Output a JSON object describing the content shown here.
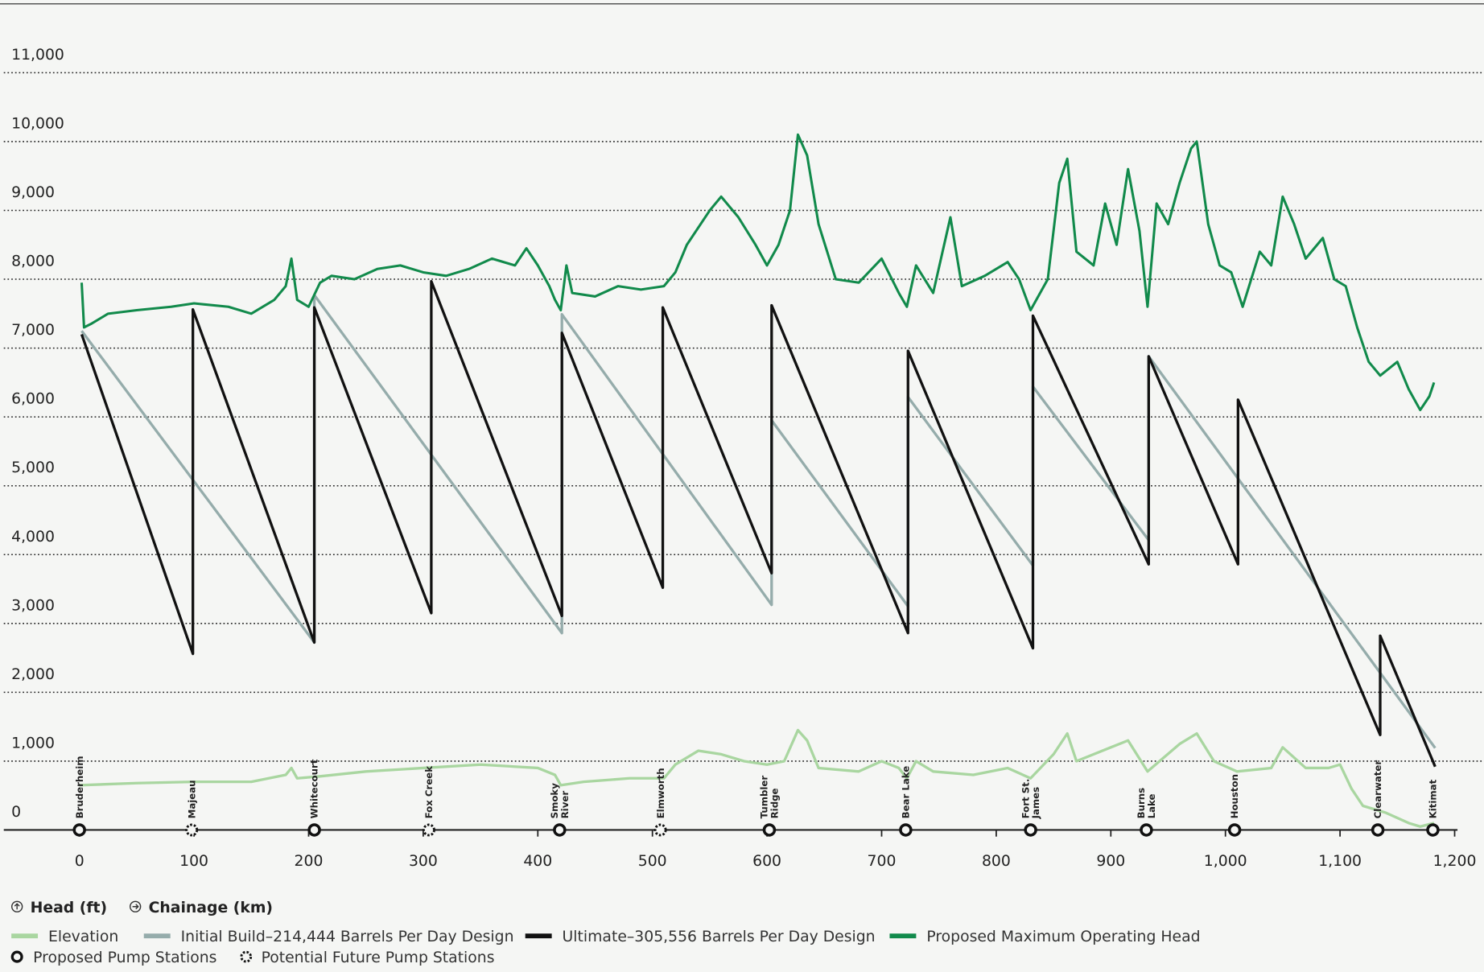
{
  "chart_data": {
    "type": "line",
    "xlabel": "Chainage (km)",
    "ylabel": "Head (ft)",
    "xlim": [
      -66,
      1202.5
    ],
    "ylim": [
      0,
      12000
    ],
    "xticks": [
      0,
      100,
      200,
      300,
      400,
      500,
      600,
      700,
      800,
      900,
      {
        "value": 1000,
        "label": "1,000"
      },
      {
        "value": 1100,
        "label": "1,100"
      },
      {
        "value": 1200,
        "label": "1,200"
      }
    ],
    "yticks": [
      0,
      {
        "value": 1000,
        "label": "1,000"
      },
      {
        "value": 2000,
        "label": "2,000"
      },
      {
        "value": 3000,
        "label": "3,000"
      },
      {
        "value": 4000,
        "label": "4,000"
      },
      {
        "value": 5000,
        "label": "5,000"
      },
      {
        "value": 6000,
        "label": "6,000"
      },
      {
        "value": 7000,
        "label": "7,000"
      },
      {
        "value": 8000,
        "label": "8,000"
      },
      {
        "value": 9000,
        "label": "9,000"
      },
      {
        "value": 10000,
        "label": "10,000"
      },
      {
        "value": 11000,
        "label": "11,000"
      }
    ],
    "grid": true,
    "series": [
      {
        "name": "Elevation",
        "color": "#a9d6a0",
        "x": [
          0,
          50,
          100,
          150,
          180,
          185,
          190,
          210,
          250,
          300,
          350,
          400,
          415,
          420,
          440,
          480,
          510,
          520,
          540,
          560,
          580,
          600,
          615,
          627,
          635,
          645,
          680,
          700,
          715,
          722,
          730,
          745,
          780,
          810,
          830,
          850,
          862,
          870,
          900,
          915,
          932,
          960,
          975,
          990,
          1010,
          1040,
          1050,
          1070,
          1090,
          1100,
          1110,
          1120,
          1140,
          1160,
          1170,
          1182
        ],
        "values": [
          650,
          680,
          700,
          700,
          800,
          900,
          750,
          780,
          850,
          900,
          950,
          900,
          800,
          650,
          700,
          750,
          750,
          950,
          1150,
          1100,
          1000,
          950,
          1000,
          1450,
          1300,
          900,
          850,
          1000,
          900,
          750,
          1000,
          850,
          800,
          900,
          750,
          1100,
          1400,
          1000,
          1200,
          1300,
          850,
          1250,
          1400,
          1000,
          850,
          900,
          1200,
          900,
          900,
          950,
          600,
          350,
          250,
          100,
          50,
          100
        ]
      },
      {
        "name": "Initial Build–214,444 Barrels Per Day Design",
        "color": "#95acab",
        "x": [
          2,
          205,
          205,
          421,
          421,
          604,
          604,
          723,
          723,
          832,
          832,
          933,
          933,
          1183
        ],
        "values": [
          7250,
          2725,
          7770,
          2860,
          7490,
          3270,
          5950,
          3250,
          6290,
          3840,
          6440,
          4210,
          6880,
          1190
        ]
      },
      {
        "name": "Ultimate–305,556 Barrels Per Day Design",
        "color": "#111111",
        "x": [
          2,
          99,
          99,
          205,
          205,
          307,
          307,
          421,
          421,
          509,
          509,
          604,
          604,
          723,
          723,
          832,
          832,
          933,
          933,
          1011,
          1011,
          1135,
          1135,
          1183
        ],
        "values": [
          7200,
          2560,
          7560,
          2725,
          7590,
          3150,
          7970,
          3110,
          7220,
          3520,
          7590,
          3730,
          7620,
          2860,
          6960,
          2640,
          7470,
          3860,
          6880,
          3860,
          6250,
          1380,
          2820,
          920
        ]
      },
      {
        "name": "Proposed Maximum Operating Head",
        "color": "#118a4b",
        "x": [
          2,
          4,
          10,
          25,
          50,
          80,
          100,
          130,
          150,
          170,
          180,
          185,
          190,
          200,
          210,
          220,
          240,
          260,
          280,
          300,
          320,
          340,
          360,
          380,
          390,
          400,
          410,
          415,
          420,
          425,
          430,
          450,
          470,
          490,
          510,
          520,
          530,
          550,
          560,
          575,
          590,
          600,
          610,
          620,
          627,
          635,
          645,
          660,
          680,
          700,
          715,
          722,
          730,
          745,
          760,
          770,
          790,
          810,
          820,
          830,
          845,
          855,
          862,
          870,
          885,
          895,
          905,
          915,
          925,
          932,
          940,
          950,
          960,
          970,
          975,
          985,
          995,
          1005,
          1015,
          1030,
          1040,
          1050,
          1060,
          1070,
          1085,
          1095,
          1105,
          1115,
          1125,
          1135,
          1150,
          1160,
          1170,
          1178,
          1182
        ],
        "values": [
          7950,
          7300,
          7350,
          7500,
          7550,
          7600,
          7650,
          7600,
          7500,
          7700,
          7900,
          8300,
          7700,
          7600,
          7950,
          8050,
          8000,
          8150,
          8200,
          8100,
          8050,
          8150,
          8300,
          8200,
          8450,
          8200,
          7900,
          7700,
          7550,
          8200,
          7800,
          7750,
          7900,
          7850,
          7900,
          8100,
          8500,
          9000,
          9200,
          8900,
          8500,
          8200,
          8500,
          9000,
          10100,
          9800,
          8800,
          8000,
          7950,
          8300,
          7800,
          7600,
          8200,
          7800,
          8900,
          7900,
          8050,
          8250,
          8000,
          7550,
          8000,
          9400,
          9750,
          8400,
          8200,
          9100,
          8500,
          9600,
          8700,
          7600,
          9100,
          8800,
          9400,
          9900,
          10000,
          8800,
          8200,
          8100,
          7600,
          8400,
          8200,
          9200,
          8800,
          8300,
          8600,
          8000,
          7900,
          7300,
          6800,
          6600,
          6800,
          6400,
          6100,
          6300,
          6500
        ]
      }
    ],
    "stations": [
      {
        "name": [
          "Bruderheim"
        ],
        "x": 0,
        "future": false
      },
      {
        "name": [
          "Majeau"
        ],
        "x": 98,
        "future": true
      },
      {
        "name": [
          "Whitecourt"
        ],
        "x": 205,
        "future": false
      },
      {
        "name": [
          "Fox Creek"
        ],
        "x": 305,
        "future": true
      },
      {
        "name": [
          "Smoky",
          "River"
        ],
        "x": 419,
        "future": false
      },
      {
        "name": [
          "Elmworth"
        ],
        "x": 507,
        "future": true
      },
      {
        "name": [
          "Tumbler",
          "Ridge"
        ],
        "x": 602,
        "future": false
      },
      {
        "name": [
          "Bear Lake"
        ],
        "x": 721,
        "future": false
      },
      {
        "name": [
          "Fort St.",
          "James"
        ],
        "x": 830,
        "future": false
      },
      {
        "name": [
          "Burns",
          "Lake"
        ],
        "x": 931,
        "future": false
      },
      {
        "name": [
          "Houston"
        ],
        "x": 1008,
        "future": false
      },
      {
        "name": [
          "Clearwater"
        ],
        "x": 1133,
        "future": false
      },
      {
        "name": [
          "Kitimat"
        ],
        "x": 1181,
        "future": false
      }
    ],
    "station_legend": {
      "proposed": "Proposed Pump Stations",
      "future": "Potential Future Pump Stations"
    }
  }
}
